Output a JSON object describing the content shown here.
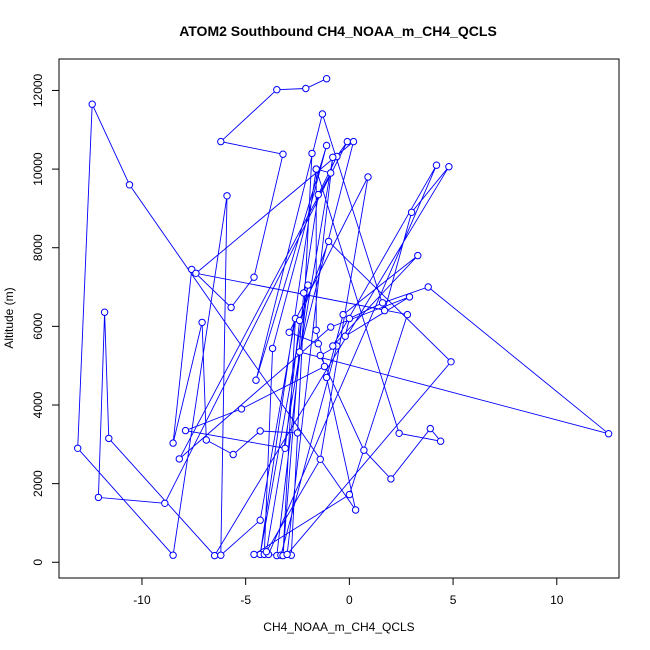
{
  "chart_data": {
    "type": "line",
    "title": "ATOM2 Southbound CH4_NOAA_m_CH4_QCLS",
    "xlabel": "CH4_NOAA_m_CH4_QCLS",
    "ylabel": "Altitude (m)",
    "xlim": [
      -14,
      13
    ],
    "ylim": [
      -400,
      12800
    ],
    "xticks": [
      -10,
      -5,
      0,
      5,
      10
    ],
    "yticks": [
      0,
      2000,
      4000,
      6000,
      8000,
      10000,
      12000
    ],
    "line_color": "#0000ff",
    "marker": "open-circle",
    "x": [
      -1.1,
      -2.1,
      -3.5,
      -6.2,
      -3.2,
      -4.6,
      -5.7,
      -7.6,
      -8.5,
      -7.1,
      -6.9,
      -5.6,
      -4.3,
      -2.5,
      -1.8,
      -2.8,
      -3.5,
      -2.0,
      -4.3,
      -1.6,
      2.4,
      4.4,
      3.9,
      2.0,
      0.7,
      -1.4,
      -0.6,
      -3.3,
      -4.1,
      -3.7,
      -1.1,
      -4.5,
      -1.3,
      1.7,
      3.0,
      4.8,
      -6.5,
      -11.6,
      -11.8,
      -12.1,
      -8.9,
      -0.1,
      -0.6,
      -1.5,
      -2.2,
      -3.2,
      -2.6,
      -4.3,
      -6.2,
      -5.9,
      -8.5,
      -13.1,
      -12.4,
      -10.6,
      0.3,
      -1.1,
      -0.3,
      3.3,
      -0.8,
      4.2,
      -3.9,
      -4.6,
      0.0,
      2.8,
      -7.4,
      0.2,
      -2.4,
      12.5,
      3.8,
      1.6,
      0.0,
      -0.2,
      2.9,
      -0.9,
      -8.2,
      -0.9,
      -1.6,
      -1.6,
      -1.2,
      -5.2,
      -7.9,
      -3.1,
      -2.4,
      -1.0,
      4.9,
      -3.0,
      -0.8,
      -4.0,
      -1.4,
      0.9,
      -2.9,
      -1.5
    ],
    "y": [
      12300,
      12050,
      12020,
      10700,
      10380,
      7250,
      6480,
      7450,
      3030,
      6100,
      3110,
      2740,
      3340,
      3290,
      10400,
      180,
      170,
      7050,
      200,
      10000,
      3280,
      3080,
      3400,
      2120,
      2850,
      5260,
      5500,
      180,
      200,
      5440,
      10600,
      4630,
      11400,
      6400,
      8900,
      10060,
      170,
      3150,
      6360,
      1650,
      1500,
      10700,
      10320,
      9350,
      6850,
      170,
      6200,
      1070,
      180,
      9320,
      180,
      2900,
      11650,
      9600,
      1330,
      4700,
      6300,
      7800,
      5500,
      10100,
      200,
      200,
      1720,
      6300,
      7350,
      10700,
      5350,
      3270,
      7000,
      6600,
      6200,
      5750,
      6750,
      5980,
      2630,
      9900,
      10000,
      5900,
      4980,
      3900,
      3350,
      2900,
      6150,
      8160,
      5100,
      200,
      10300,
      270,
      2620,
      9800,
      5850,
      5560
    ]
  }
}
